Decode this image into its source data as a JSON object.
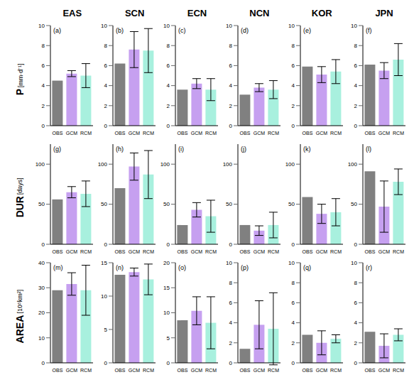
{
  "columns": [
    "EAS",
    "SCN",
    "ECN",
    "NCN",
    "KOR",
    "JPN"
  ],
  "rows": [
    {
      "label": "P",
      "unit": "[mm·d⁻¹]"
    },
    {
      "label": "DUR",
      "unit": "[days]"
    },
    {
      "label": "AREA",
      "unit": "[10⁵km²]"
    }
  ],
  "chart_data": [
    {
      "type": "bar",
      "panel": "(a)",
      "categories": [
        "OBS",
        "GCM",
        "RCM"
      ],
      "values": [
        4.5,
        5.2,
        5.0
      ],
      "errors": [
        null,
        0.3,
        1.2
      ],
      "colors": [
        "#808080",
        "#c6a0f0",
        "#a8f0de"
      ],
      "ylim": [
        0,
        10
      ],
      "yticks": [
        0,
        2,
        4,
        6,
        8,
        10
      ]
    },
    {
      "type": "bar",
      "panel": "(b)",
      "categories": [
        "OBS",
        "GCM",
        "RCM"
      ],
      "values": [
        6.2,
        7.6,
        7.5
      ],
      "errors": [
        null,
        1.8,
        2.2
      ],
      "colors": [
        "#808080",
        "#c6a0f0",
        "#a8f0de"
      ],
      "ylim": [
        0,
        10
      ],
      "yticks": [
        0,
        2,
        4,
        6,
        8,
        10
      ]
    },
    {
      "type": "bar",
      "panel": "(c)",
      "categories": [
        "OBS",
        "GCM",
        "RCM"
      ],
      "values": [
        3.6,
        4.2,
        3.6
      ],
      "errors": [
        null,
        0.5,
        1.1
      ],
      "colors": [
        "#808080",
        "#c6a0f0",
        "#a8f0de"
      ],
      "ylim": [
        0,
        10
      ],
      "yticks": [
        0,
        2,
        4,
        6,
        8,
        10
      ]
    },
    {
      "type": "bar",
      "panel": "(d)",
      "categories": [
        "OBS",
        "GCM",
        "RCM"
      ],
      "values": [
        3.1,
        3.8,
        3.6
      ],
      "errors": [
        null,
        0.4,
        0.9
      ],
      "colors": [
        "#808080",
        "#c6a0f0",
        "#a8f0de"
      ],
      "ylim": [
        0,
        10
      ],
      "yticks": [
        0,
        2,
        4,
        6,
        8,
        10
      ]
    },
    {
      "type": "bar",
      "panel": "(e)",
      "categories": [
        "OBS",
        "GCM",
        "RCM"
      ],
      "values": [
        5.9,
        5.1,
        5.4
      ],
      "errors": [
        null,
        0.8,
        1.2
      ],
      "colors": [
        "#808080",
        "#c6a0f0",
        "#a8f0de"
      ],
      "ylim": [
        0,
        10
      ],
      "yticks": [
        0,
        2,
        4,
        6,
        8,
        10
      ]
    },
    {
      "type": "bar",
      "panel": "(f)",
      "categories": [
        "OBS",
        "GCM",
        "RCM"
      ],
      "values": [
        6.1,
        5.5,
        6.6
      ],
      "errors": [
        null,
        0.8,
        1.6
      ],
      "colors": [
        "#808080",
        "#c6a0f0",
        "#a8f0de"
      ],
      "ylim": [
        0,
        10
      ],
      "yticks": [
        0,
        2,
        4,
        6,
        8,
        10
      ]
    },
    {
      "type": "bar",
      "panel": "(g)",
      "categories": [
        "OBS",
        "GCM",
        "RCM"
      ],
      "values": [
        56,
        65,
        63
      ],
      "errors": [
        null,
        7,
        16
      ],
      "colors": [
        "#808080",
        "#c6a0f0",
        "#a8f0de"
      ],
      "ylim": [
        0,
        125
      ],
      "yticks": [
        0,
        50,
        100
      ]
    },
    {
      "type": "bar",
      "panel": "(h)",
      "categories": [
        "OBS",
        "GCM",
        "RCM"
      ],
      "values": [
        70,
        97,
        87
      ],
      "errors": [
        null,
        17,
        30
      ],
      "colors": [
        "#808080",
        "#c6a0f0",
        "#a8f0de"
      ],
      "ylim": [
        0,
        125
      ],
      "yticks": [
        0,
        50,
        100
      ]
    },
    {
      "type": "bar",
      "panel": "(i)",
      "categories": [
        "OBS",
        "GCM",
        "RCM"
      ],
      "values": [
        24,
        43,
        35
      ],
      "errors": [
        null,
        9,
        20
      ],
      "colors": [
        "#808080",
        "#c6a0f0",
        "#a8f0de"
      ],
      "ylim": [
        0,
        125
      ],
      "yticks": [
        0,
        50,
        100
      ]
    },
    {
      "type": "bar",
      "panel": "(j)",
      "categories": [
        "OBS",
        "GCM",
        "RCM"
      ],
      "values": [
        24,
        17,
        24
      ],
      "errors": [
        null,
        6,
        16
      ],
      "colors": [
        "#808080",
        "#c6a0f0",
        "#a8f0de"
      ],
      "ylim": [
        0,
        125
      ],
      "yticks": [
        0,
        50,
        100
      ]
    },
    {
      "type": "bar",
      "panel": "(k)",
      "categories": [
        "OBS",
        "GCM",
        "RCM"
      ],
      "values": [
        59,
        38,
        40
      ],
      "errors": [
        null,
        12,
        17
      ],
      "colors": [
        "#808080",
        "#c6a0f0",
        "#a8f0de"
      ],
      "ylim": [
        0,
        125
      ],
      "yticks": [
        0,
        50,
        100
      ]
    },
    {
      "type": "bar",
      "panel": "(l)",
      "categories": [
        "OBS",
        "GCM",
        "RCM"
      ],
      "values": [
        91,
        47,
        78
      ],
      "errors": [
        null,
        32,
        16
      ],
      "colors": [
        "#808080",
        "#c6a0f0",
        "#a8f0de"
      ],
      "ylim": [
        0,
        125
      ],
      "yticks": [
        0,
        50,
        100
      ]
    },
    {
      "type": "bar",
      "panel": "(m)",
      "categories": [
        "OBS",
        "GCM",
        "RCM"
      ],
      "values": [
        29,
        31.5,
        29
      ],
      "errors": [
        null,
        4.5,
        10
      ],
      "colors": [
        "#808080",
        "#c6a0f0",
        "#a8f0de"
      ],
      "ylim": [
        0,
        40
      ],
      "yticks": [
        0,
        10,
        20,
        30,
        40
      ]
    },
    {
      "type": "bar",
      "panel": "(n)",
      "categories": [
        "OBS",
        "GCM",
        "RCM"
      ],
      "values": [
        13.2,
        13.6,
        12.5
      ],
      "errors": [
        null,
        0.6,
        2.3
      ],
      "colors": [
        "#808080",
        "#c6a0f0",
        "#a8f0de"
      ],
      "ylim": [
        0,
        15
      ],
      "yticks": [
        0,
        5,
        10,
        15
      ]
    },
    {
      "type": "bar",
      "panel": "(o)",
      "categories": [
        "OBS",
        "GCM",
        "RCM"
      ],
      "values": [
        8.5,
        10.4,
        8
      ],
      "errors": [
        null,
        2.8,
        5.2
      ],
      "colors": [
        "#808080",
        "#c6a0f0",
        "#a8f0de"
      ],
      "ylim": [
        0,
        20
      ],
      "yticks": [
        0,
        5,
        10,
        15,
        20
      ]
    },
    {
      "type": "bar",
      "panel": "(p)",
      "categories": [
        "OBS",
        "GCM",
        "RCM"
      ],
      "values": [
        1.4,
        3.8,
        3.4
      ],
      "errors": [
        null,
        2.4,
        3.6
      ],
      "colors": [
        "#808080",
        "#c6a0f0",
        "#a8f0de"
      ],
      "ylim": [
        0,
        10
      ],
      "yticks": [
        0,
        2,
        4,
        6,
        8,
        10
      ]
    },
    {
      "type": "bar",
      "panel": "(q)",
      "categories": [
        "OBS",
        "GCM",
        "RCM"
      ],
      "values": [
        2.8,
        2.0,
        2.4
      ],
      "errors": [
        null,
        1.2,
        0.4
      ],
      "colors": [
        "#808080",
        "#c6a0f0",
        "#a8f0de"
      ],
      "ylim": [
        0,
        10
      ],
      "yticks": [
        0,
        2,
        4,
        6,
        8,
        10
      ]
    },
    {
      "type": "bar",
      "panel": "(r)",
      "categories": [
        "OBS",
        "GCM",
        "RCM"
      ],
      "values": [
        3.1,
        1.7,
        2.8
      ],
      "errors": [
        null,
        1.2,
        0.6
      ],
      "colors": [
        "#808080",
        "#c6a0f0",
        "#a8f0de"
      ],
      "ylim": [
        0,
        10
      ],
      "yticks": [
        0,
        2,
        4,
        6,
        8,
        10
      ]
    }
  ]
}
